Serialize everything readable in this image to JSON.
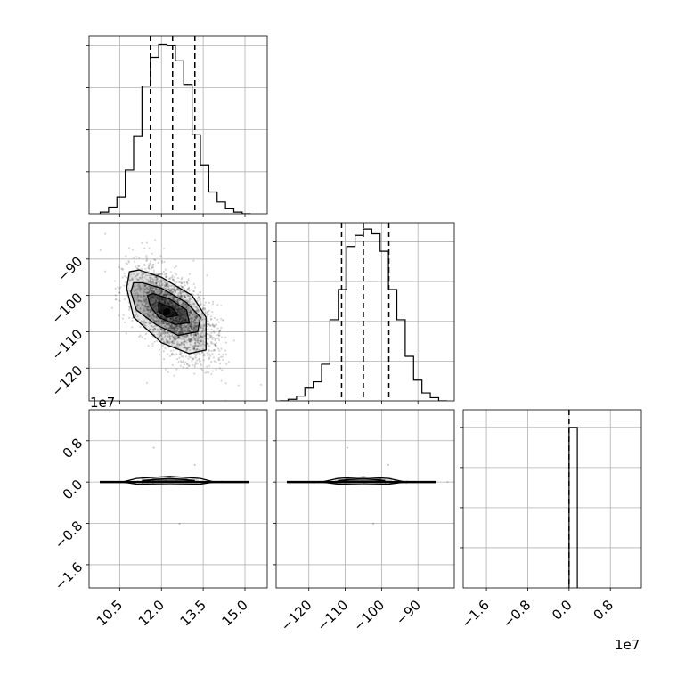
{
  "chart_data": {
    "type": "corner",
    "grid": true,
    "parameters": [
      {
        "range": [
          9.4,
          15.8
        ],
        "ticks": [
          10.5,
          12.0,
          13.5,
          15.0
        ],
        "tick_labels": [
          "10.5",
          "12.0",
          "13.5",
          "15.0"
        ],
        "quantiles": [
          11.6,
          12.4,
          13.2
        ],
        "histogram": {
          "bin_edges": [
            9.8,
            10.1,
            10.4,
            10.7,
            11.0,
            11.3,
            11.6,
            11.9,
            12.2,
            12.5,
            12.8,
            13.1,
            13.4,
            13.7,
            14.0,
            14.3,
            14.6,
            14.9,
            15.2
          ],
          "counts": [
            1,
            4,
            10,
            26,
            46,
            76,
            93,
            101,
            100,
            91,
            77,
            47,
            29,
            13,
            7,
            3,
            1,
            0
          ],
          "ymax": 106
        }
      },
      {
        "range": [
          -129,
          -80
        ],
        "ticks": [
          -120,
          -110,
          -100,
          -90
        ],
        "tick_labels": [
          "−120",
          "−110",
          "−100",
          "−90"
        ],
        "quantiles": [
          -111,
          -105,
          -98
        ],
        "histogram": {
          "bin_edges": [
            -128,
            -125.7,
            -123.4,
            -121.1,
            -118.8,
            -116.5,
            -114.2,
            -111.9,
            -109.6,
            -107.3,
            -105,
            -102.7,
            -100.4,
            -98.1,
            -95.8,
            -93.5,
            -91.2,
            -88.9,
            -86.6,
            -84.3,
            -82
          ],
          "counts": [
            0,
            1,
            3,
            8,
            12,
            23,
            51,
            70,
            97,
            104,
            108,
            105,
            94,
            70,
            51,
            28,
            13,
            5,
            2,
            0
          ],
          "ymax": 112
        }
      },
      {
        "range": [
          -2.05,
          1.4
        ],
        "ticks": [
          -1.6,
          -0.8,
          0.0,
          0.8
        ],
        "tick_labels": [
          "−1.6",
          "−0.8",
          "0.0",
          "0.8"
        ],
        "axis_exponent": "1e7",
        "quantiles": [
          0.0
        ],
        "histogram": {
          "bin_edges": [
            0.0,
            0.16
          ],
          "counts": [
            100
          ],
          "ymax": 111
        }
      }
    ],
    "density": [
      {
        "row": 1,
        "col": 0,
        "cov": [
          [
            0.55,
            -2.6
          ],
          [
            -2.6,
            37
          ]
        ],
        "center": [
          12.4,
          -105
        ],
        "peak": [
          12.2,
          -104.5
        ],
        "contours": [
          {
            "level": 1,
            "points": [
              [
                11.2,
                -93
              ],
              [
                12.0,
                -95
              ],
              [
                13.1,
                -100
              ],
              [
                13.6,
                -106
              ],
              [
                13.6,
                -115
              ],
              [
                13.0,
                -116
              ],
              [
                12.0,
                -113
              ],
              [
                11.0,
                -106
              ],
              [
                10.75,
                -98
              ],
              [
                10.85,
                -93.5
              ]
            ]
          },
          {
            "level": 2,
            "points": [
              [
                11.3,
                -96.5
              ],
              [
                12.0,
                -98
              ],
              [
                12.9,
                -102
              ],
              [
                13.4,
                -106
              ],
              [
                13.3,
                -110
              ],
              [
                12.6,
                -111
              ],
              [
                11.8,
                -108
              ],
              [
                11.1,
                -104
              ],
              [
                10.9,
                -99
              ],
              [
                11.0,
                -96.5
              ]
            ]
          },
          {
            "level": 3,
            "points": [
              [
                11.7,
                -99.5
              ],
              [
                12.3,
                -101
              ],
              [
                12.9,
                -104
              ],
              [
                13.0,
                -107.5
              ],
              [
                12.5,
                -108
              ],
              [
                11.9,
                -106
              ],
              [
                11.6,
                -103
              ],
              [
                11.5,
                -100
              ]
            ]
          },
          {
            "level": 4,
            "points": [
              [
                11.9,
                -102
              ],
              [
                12.4,
                -103.5
              ],
              [
                12.6,
                -105.5
              ],
              [
                12.2,
                -106
              ],
              [
                11.9,
                -104.5
              ]
            ]
          }
        ]
      },
      {
        "row": 2,
        "col": 0,
        "center": [
          12.3,
          0.0
        ],
        "contours": [
          {
            "level": 1,
            "points": [
              [
                10.6,
                0.0
              ],
              [
                11.1,
                0.07
              ],
              [
                12.3,
                0.11
              ],
              [
                13.4,
                0.07
              ],
              [
                13.9,
                0.0
              ],
              [
                13.4,
                -0.04
              ],
              [
                12.3,
                -0.05
              ],
              [
                11.1,
                -0.04
              ]
            ]
          },
          {
            "level": 2,
            "points": [
              [
                11.3,
                0.03
              ],
              [
                12.3,
                0.07
              ],
              [
                13.2,
                0.03
              ],
              [
                12.3,
                -0.01
              ]
            ]
          }
        ]
      },
      {
        "row": 2,
        "col": 1,
        "center": [
          -105,
          0.0
        ],
        "contours": [
          {
            "level": 1,
            "points": [
              [
                -116.5,
                0.0
              ],
              [
                -112,
                0.07
              ],
              [
                -105,
                0.1
              ],
              [
                -98,
                0.07
              ],
              [
                -93.5,
                0.0
              ],
              [
                -98,
                -0.04
              ],
              [
                -105,
                -0.05
              ],
              [
                -112,
                -0.04
              ]
            ]
          },
          {
            "level": 2,
            "points": [
              [
                -112,
                0.03
              ],
              [
                -105,
                0.07
              ],
              [
                -99,
                0.03
              ],
              [
                -105,
                -0.01
              ]
            ]
          }
        ]
      }
    ]
  }
}
